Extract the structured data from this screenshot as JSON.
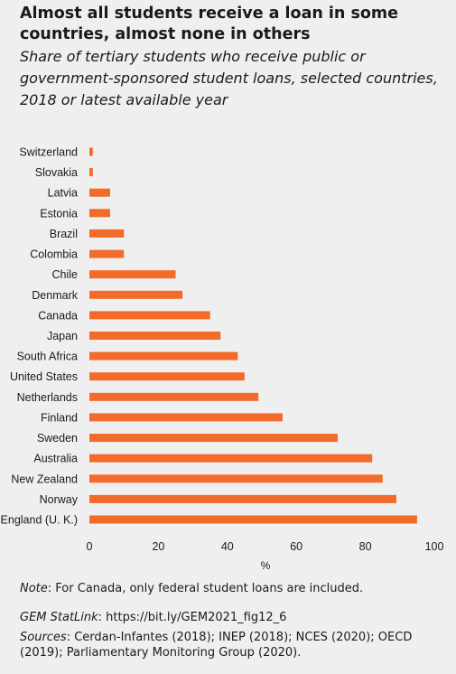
{
  "header": {
    "title": "Almost all students receive a loan in some countries, almost none in others",
    "subtitle": "Share of tertiary students who receive public or government-sponsored student loans, selected countries, 2018 or latest available year"
  },
  "colors": {
    "bar": "#f26b2a",
    "background": "#efefef",
    "text": "#1a1a1a"
  },
  "chart_data": {
    "type": "bar",
    "orientation": "horizontal",
    "categories": [
      "Switzerland",
      "Slovakia",
      "Latvia",
      "Estonia",
      "Brazil",
      "Colombia",
      "Chile",
      "Denmark",
      "Canada",
      "Japan",
      "South Africa",
      "United States",
      "Netherlands",
      "Finland",
      "Sweden",
      "Australia",
      "New Zealand",
      "Norway",
      "England (U. K.)"
    ],
    "values": [
      1,
      1,
      6,
      6,
      10,
      10,
      25,
      27,
      35,
      38,
      43,
      45,
      49,
      56,
      72,
      82,
      85,
      89,
      95
    ],
    "xlabel": "%",
    "ylabel": "",
    "xlim": [
      0,
      100
    ],
    "xticks": [
      "0",
      "20",
      "40",
      "60",
      "80",
      "100"
    ],
    "grid": false,
    "legend": "none"
  },
  "footer": {
    "note_lead": "Note",
    "note_text": ": For Canada, only federal student loans are included.",
    "statlink_lead": "GEM StatLink",
    "statlink_text": ": https://bit.ly/GEM2021_fig12_6",
    "sources_lead": "Sources",
    "sources_text": ": Cerdan-Infantes (2018); INEP (2018); NCES (2020); OECD (2019); Parliamentary Monitoring Group (2020)."
  }
}
